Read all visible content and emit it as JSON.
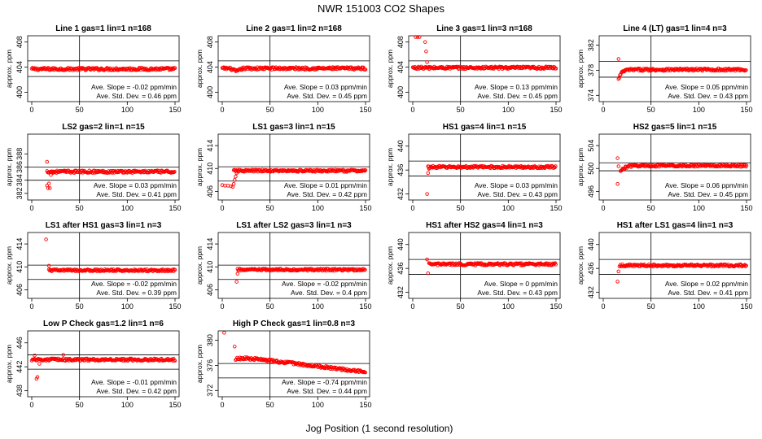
{
  "figure": {
    "title": "NWR  151003  CO2 Shapes",
    "xlabel": "Jog Position (1 second resolution)",
    "ylabel": "approx. ppm",
    "slope_prefix": "Ave. Slope =",
    "slope_unit": "ppm/min",
    "sd_prefix": "Ave. Std. Dev. =",
    "sd_unit": "ppm",
    "colors": {
      "points": "#ff0000",
      "axes": "#000000"
    }
  },
  "chart_data": [
    {
      "type": "scatter",
      "title": "Line 1 gas=1 lin=1 n=168",
      "xlim": [
        0,
        150
      ],
      "xticks": [
        0,
        50,
        100,
        150
      ],
      "ylim": [
        398.5,
        409
      ],
      "yticks": [
        400,
        404,
        408
      ],
      "hlines": [
        405,
        402.5
      ],
      "vline": 50,
      "level": 403.7,
      "start_x": 0,
      "slope": "-0.02",
      "sd": "0.46",
      "shape": "flat",
      "outliers": []
    },
    {
      "type": "scatter",
      "title": "Line 2 gas=1 lin=2 n=168",
      "xlim": [
        0,
        150
      ],
      "xticks": [
        0,
        50,
        100,
        150
      ],
      "ylim": [
        398.5,
        409
      ],
      "yticks": [
        400,
        404,
        408
      ],
      "hlines": [
        405,
        402.5
      ],
      "vline": 50,
      "level": 403.8,
      "start_x": 0,
      "slope": "0.03",
      "sd": "0.45",
      "shape": "dip",
      "outliers": []
    },
    {
      "type": "scatter",
      "title": "Line 3 gas=1 lin=3 n=168",
      "xlim": [
        0,
        150
      ],
      "xticks": [
        0,
        50,
        100,
        150
      ],
      "ylim": [
        398.5,
        409
      ],
      "yticks": [
        400,
        404,
        408
      ],
      "hlines": [
        405,
        402.5
      ],
      "vline": 50,
      "level": 403.9,
      "start_x": 0,
      "slope": "0.13",
      "sd": "0.45",
      "shape": "spike",
      "outliers": [
        [
          3,
          409.6
        ],
        [
          5,
          409
        ],
        [
          7,
          409.6
        ],
        [
          13,
          408
        ],
        [
          14,
          406.5
        ],
        [
          15,
          404.8
        ],
        [
          17,
          403.7
        ]
      ]
    },
    {
      "type": "scatter",
      "title": "Line 4 (LT) gas=1 lin=4 n=3",
      "xlim": [
        0,
        150
      ],
      "xticks": [
        0,
        50,
        100,
        150
      ],
      "ylim": [
        373,
        383.5
      ],
      "yticks": [
        374,
        378,
        382
      ],
      "hlines": [
        379.4,
        376.9
      ],
      "vline": 50,
      "level": 378.1,
      "start_x": 16,
      "slope": "0.05",
      "sd": "0.43",
      "shape": "dipstart",
      "outliers": [
        [
          16,
          379.8
        ]
      ]
    },
    {
      "type": "scatter",
      "title": "LS2 gas=2 lin=1 n=15",
      "xlim": [
        0,
        150
      ],
      "xticks": [
        0,
        50,
        100,
        150
      ],
      "ylim": [
        381,
        391
      ],
      "yticks": [
        382,
        384,
        386,
        388
      ],
      "hlines": [
        386,
        384
      ],
      "vline": 50,
      "level": 385.3,
      "start_x": 16,
      "slope": "0.03",
      "sd": "0.41",
      "shape": "flat",
      "outliers": [
        [
          16,
          386.8
        ],
        [
          16,
          383.2
        ],
        [
          17,
          382.8
        ],
        [
          18,
          383.5
        ],
        [
          19,
          382.8
        ],
        [
          20,
          384.8
        ],
        [
          22,
          385.1
        ]
      ]
    },
    {
      "type": "scatter",
      "title": "LS1 gas=3 lin=1 n=15",
      "xlim": [
        0,
        150
      ],
      "xticks": [
        0,
        50,
        100,
        150
      ],
      "ylim": [
        404.5,
        416
      ],
      "yticks": [
        406,
        410,
        414
      ],
      "hlines": [
        410.3,
        407.8
      ],
      "vline": 50,
      "level": 409.6,
      "start_x": 12,
      "slope": "0.01",
      "sd": "0.42",
      "shape": "flat",
      "outliers": [
        [
          0,
          407.1
        ],
        [
          3,
          407
        ],
        [
          6,
          407
        ],
        [
          9,
          406.9
        ],
        [
          11,
          406.8
        ],
        [
          12,
          407.3
        ],
        [
          13,
          408
        ],
        [
          14,
          408.6
        ],
        [
          15,
          409.2
        ]
      ]
    },
    {
      "type": "scatter",
      "title": "HS1 gas=4 lin=1 n=15",
      "xlim": [
        0,
        150
      ],
      "xticks": [
        0,
        50,
        100,
        150
      ],
      "ylim": [
        431,
        442
      ],
      "yticks": [
        432,
        436,
        440
      ],
      "hlines": [
        437.5,
        435
      ],
      "vline": 50,
      "level": 436.5,
      "start_x": 16,
      "slope": "0.03",
      "sd": "0.43",
      "shape": "flat",
      "outliers": [
        [
          15,
          432
        ],
        [
          16,
          435.5
        ],
        [
          17,
          436.2
        ]
      ]
    },
    {
      "type": "scatter",
      "title": "HS2 gas=5 lin=1 n=15",
      "xlim": [
        0,
        150
      ],
      "xticks": [
        0,
        50,
        100,
        150
      ],
      "ylim": [
        494.5,
        506
      ],
      "yticks": [
        496,
        500,
        504
      ],
      "hlines": [
        501,
        499.6
      ],
      "vline": 50,
      "level": 500.5,
      "start_x": 18,
      "slope": "0.06",
      "sd": "0.45",
      "shape": "recover",
      "outliers": [
        [
          15,
          501.8
        ],
        [
          15,
          497.3
        ],
        [
          16,
          500.4
        ]
      ]
    },
    {
      "type": "scatter",
      "title": "LS1 after HS1 gas=3 lin=1 n=3",
      "xlim": [
        0,
        150
      ],
      "xticks": [
        0,
        50,
        100,
        150
      ],
      "ylim": [
        404.5,
        416
      ],
      "yticks": [
        406,
        410,
        414
      ],
      "hlines": [
        410.3,
        407.8
      ],
      "vline": 50,
      "level": 409.4,
      "start_x": 18,
      "slope": "-0.02",
      "sd": "0.39",
      "shape": "flat",
      "outliers": [
        [
          15,
          414.8
        ],
        [
          18,
          410.2
        ]
      ]
    },
    {
      "type": "scatter",
      "title": "LS1 after LS2 gas=3 lin=1 n=3",
      "xlim": [
        0,
        150
      ],
      "xticks": [
        0,
        50,
        100,
        150
      ],
      "ylim": [
        404.5,
        416
      ],
      "yticks": [
        406,
        410,
        414
      ],
      "hlines": [
        410.3,
        407.8
      ],
      "vline": 50,
      "level": 409.5,
      "start_x": 16,
      "slope": "-0.02",
      "sd": "0.4",
      "shape": "flat",
      "outliers": [
        [
          15,
          407.4
        ],
        [
          16,
          408.8
        ]
      ]
    },
    {
      "type": "scatter",
      "title": "HS1 after HS2 gas=4 lin=1 n=3",
      "xlim": [
        0,
        150
      ],
      "xticks": [
        0,
        50,
        100,
        150
      ],
      "ylim": [
        431,
        442
      ],
      "yticks": [
        432,
        436,
        440
      ],
      "hlines": [
        437.5,
        435
      ],
      "vline": 50,
      "level": 436.7,
      "start_x": 17,
      "slope": "0",
      "sd": "0.43",
      "shape": "flat",
      "outliers": [
        [
          15,
          437.5
        ],
        [
          16,
          435.2
        ]
      ]
    },
    {
      "type": "scatter",
      "title": "HS1 after LS1 gas=4 lin=1 n=3",
      "xlim": [
        0,
        150
      ],
      "xticks": [
        0,
        50,
        100,
        150
      ],
      "ylim": [
        431,
        442
      ],
      "yticks": [
        432,
        436,
        440
      ],
      "hlines": [
        437.5,
        435
      ],
      "vline": 50,
      "level": 436.5,
      "start_x": 17,
      "slope": "0.02",
      "sd": "0.41",
      "shape": "flat",
      "outliers": [
        [
          15,
          433.8
        ],
        [
          16,
          435.5
        ]
      ]
    },
    {
      "type": "scatter",
      "title": "Low P Check gas=1.2 lin=1 n=6",
      "xlim": [
        0,
        150
      ],
      "xticks": [
        0,
        50,
        100,
        150
      ],
      "ylim": [
        437,
        448
      ],
      "yticks": [
        438,
        442,
        446
      ],
      "hlines": [
        444,
        441.6
      ],
      "vline": 50,
      "level": 443.2,
      "start_x": 0,
      "slope": "-0.01",
      "sd": "0.42",
      "shape": "flat",
      "outliers": [
        [
          3,
          443.9
        ],
        [
          5,
          440
        ],
        [
          6,
          440.3
        ],
        [
          8,
          442.5
        ],
        [
          33,
          444
        ]
      ]
    },
    {
      "type": "scatter",
      "title": "High P Check gas=1 lin=0.8 n=3",
      "xlim": [
        0,
        150
      ],
      "xticks": [
        0,
        50,
        100,
        150
      ],
      "ylim": [
        371,
        381.5
      ],
      "yticks": [
        372,
        376,
        380
      ],
      "hlines": [
        376.3,
        374
      ],
      "vline": 50,
      "level": 375.5,
      "start_x": 14,
      "slope": "-0.74",
      "sd": "0.44",
      "shape": "decay",
      "outliers": [
        [
          2,
          381.2
        ],
        [
          13,
          379
        ]
      ]
    }
  ]
}
